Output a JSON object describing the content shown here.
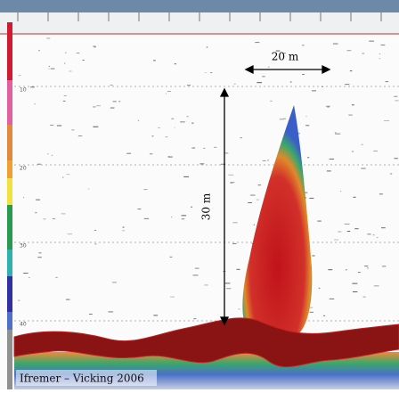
{
  "depth_labels": [
    "10",
    "20",
    "30",
    "40"
  ],
  "annotations": {
    "width": "20 m",
    "height": "30 m"
  },
  "credit": "Ifremer – Vicking 2006"
}
